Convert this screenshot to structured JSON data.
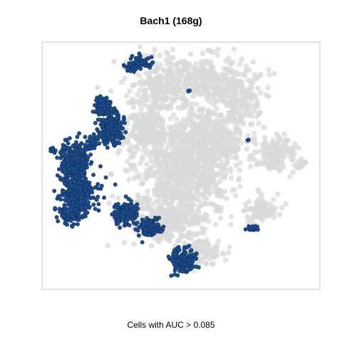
{
  "chart_data": {
    "type": "scatter",
    "title": "Bach1 (168g)",
    "xlabel": "Cells with AUC > 0.085",
    "ylabel": "",
    "grid": false,
    "colors": {
      "background_cells": "#d9d9d9",
      "active_cells": "#1f4e8c",
      "active_edge": "#0f2f5e",
      "frame": "#c8c8c8"
    },
    "series": [
      {
        "name": "",
        "role": "background",
        "cluster_shapes": []
      },
      {
        "name": "",
        "role": "active",
        "cluster_shapes": []
      }
    ]
  }
}
